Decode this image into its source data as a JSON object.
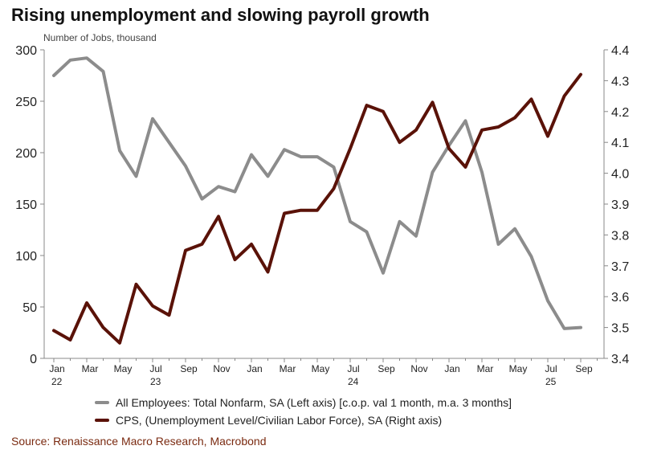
{
  "chart_data": {
    "type": "line",
    "title": "Rising unemployment and slowing payroll growth",
    "ylabel": "Number of Jobs, thousand",
    "ylabel_right": "",
    "xlabel": "",
    "ylim": [
      0,
      300
    ],
    "y_ticks": [
      0,
      50,
      100,
      150,
      200,
      250,
      300
    ],
    "ylim_right": [
      3.4,
      4.4
    ],
    "y_ticks_right": [
      "3.4",
      "3.5",
      "3.6",
      "3.7",
      "3.8",
      "3.9",
      "4.0",
      "4.1",
      "4.2",
      "4.3",
      "4.4"
    ],
    "x_ticks": [
      {
        "month": "Jan",
        "year": "22"
      },
      {
        "month": "Mar",
        "year": ""
      },
      {
        "month": "May",
        "year": ""
      },
      {
        "month": "Jul",
        "year": "23"
      },
      {
        "month": "Sep",
        "year": ""
      },
      {
        "month": "Nov",
        "year": ""
      },
      {
        "month": "Jan",
        "year": ""
      },
      {
        "month": "Mar",
        "year": ""
      },
      {
        "month": "May",
        "year": ""
      },
      {
        "month": "Jul",
        "year": "24"
      },
      {
        "month": "Sep",
        "year": ""
      },
      {
        "month": "Nov",
        "year": ""
      },
      {
        "month": "Jan",
        "year": ""
      },
      {
        "month": "Mar",
        "year": ""
      },
      {
        "month": "May",
        "year": ""
      },
      {
        "month": "Jul",
        "year": "25"
      },
      {
        "month": "Sep",
        "year": ""
      }
    ],
    "series": [
      {
        "name": "All Employees: Total Nonfarm, SA (Left axis) [c.o.p. val 1 month, m.a. 3 months]",
        "axis": "left",
        "color": "#8c8c8c",
        "values": [
          275,
          290,
          292,
          279,
          202,
          177,
          233,
          210,
          187,
          155,
          167,
          162,
          198,
          177,
          203,
          196,
          196,
          186,
          133,
          123,
          83,
          133,
          119,
          181,
          207,
          231,
          181,
          111,
          126,
          99,
          56,
          29,
          30
        ]
      },
      {
        "name": "CPS, (Unemployment Level/Civilian Labor Force), SA (Right axis)",
        "axis": "right",
        "color": "#5a1208",
        "values": [
          3.49,
          3.46,
          3.58,
          3.5,
          3.45,
          3.64,
          3.57,
          3.54,
          3.75,
          3.77,
          3.86,
          3.72,
          3.77,
          3.68,
          3.87,
          3.88,
          3.88,
          3.95,
          4.08,
          4.22,
          4.2,
          4.1,
          4.14,
          4.23,
          4.08,
          4.02,
          4.14,
          4.15,
          4.18,
          4.24,
          4.12,
          4.25,
          4.32
        ]
      }
    ]
  },
  "source": "Source: Renaissance Macro Research, Macrobond"
}
